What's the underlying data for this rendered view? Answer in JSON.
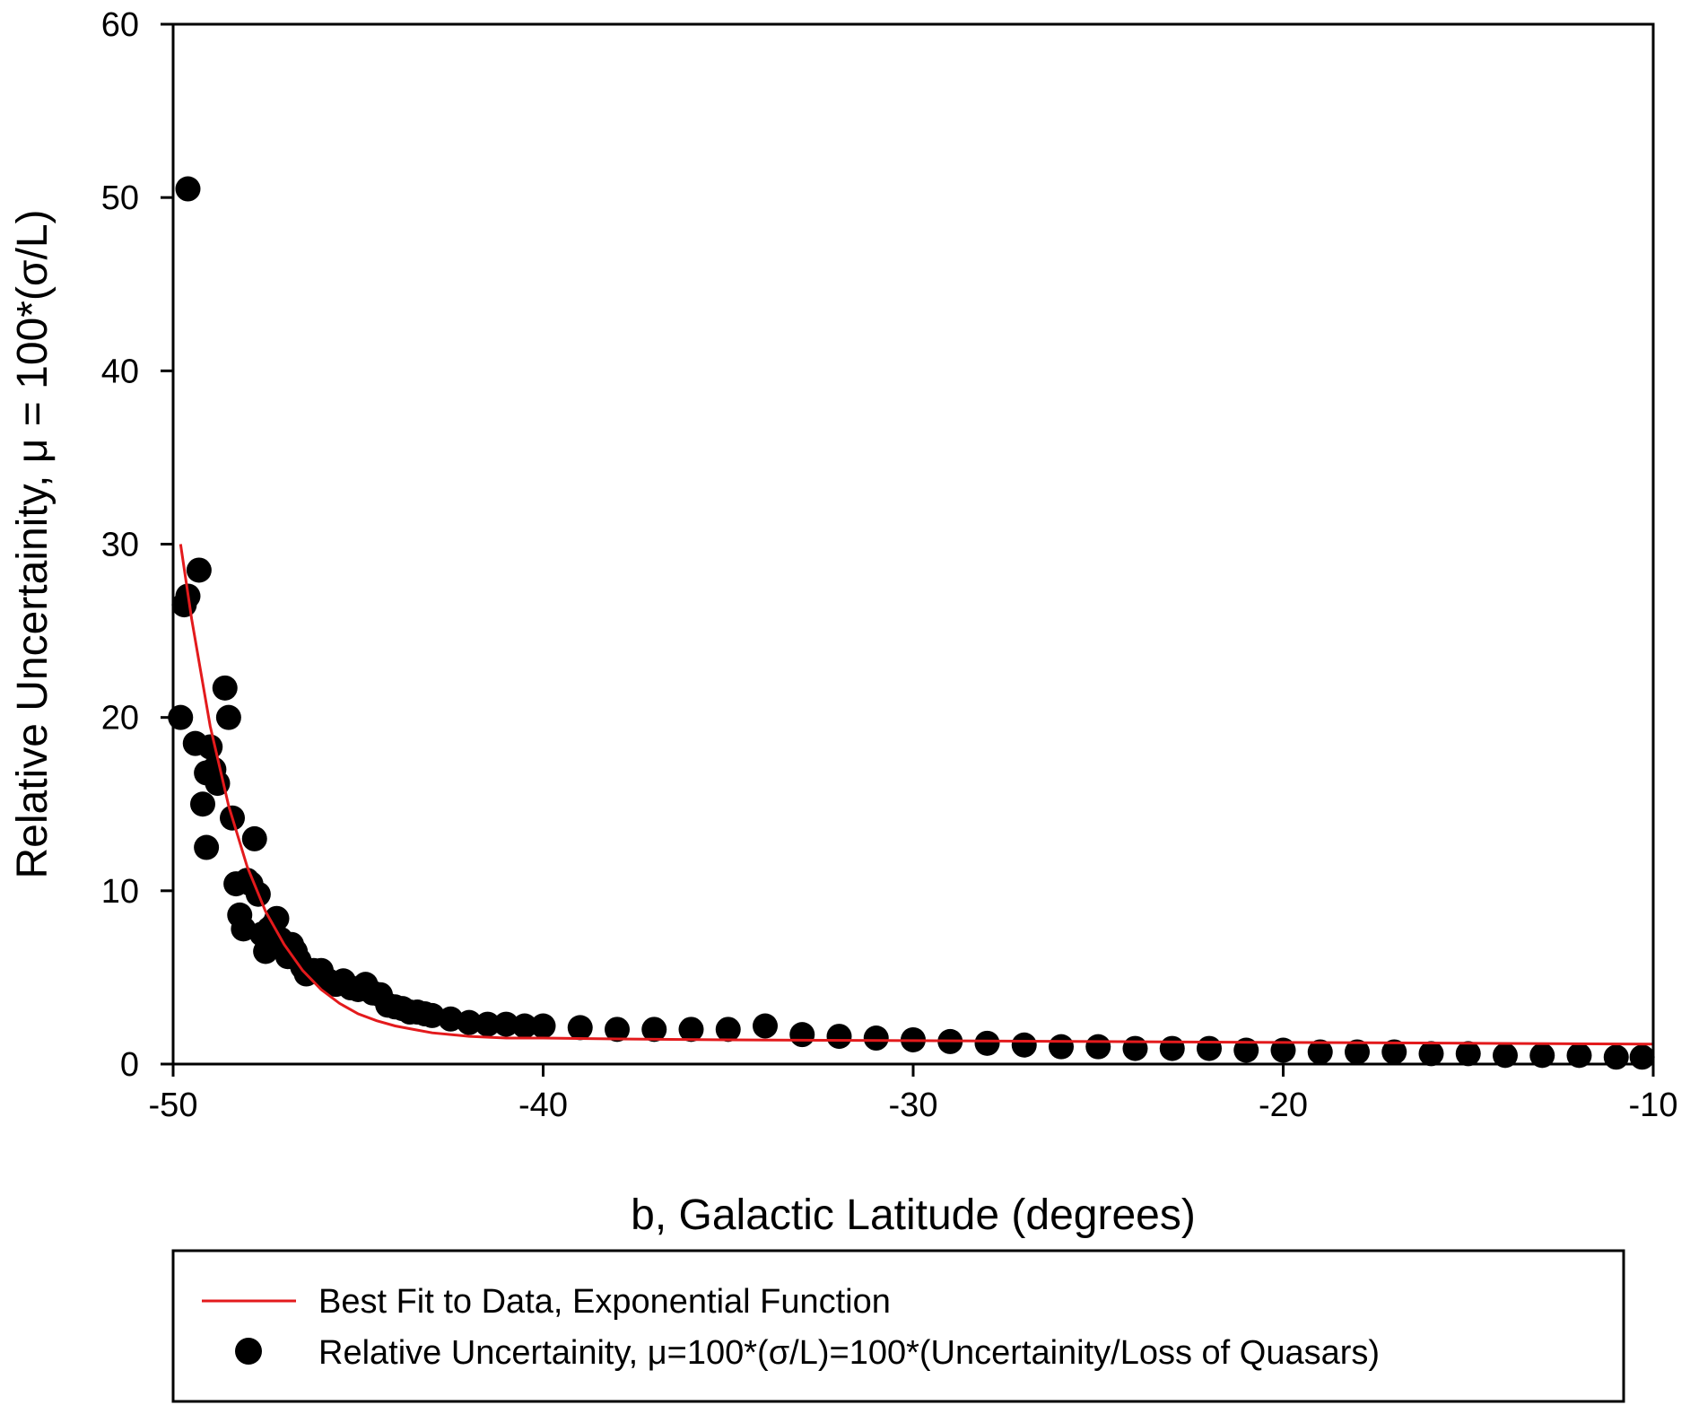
{
  "chart_data": {
    "type": "scatter",
    "title": "",
    "xlabel": "b, Galactic Latitude (degrees)",
    "ylabel": "Relative Uncertainity, μ = 100*(σ/L)",
    "xlim": [
      -50,
      -10
    ],
    "ylim": [
      0,
      60
    ],
    "x_ticks": [
      -50,
      -40,
      -30,
      -20,
      -10
    ],
    "y_ticks": [
      0,
      10,
      20,
      30,
      40,
      50,
      60
    ],
    "x_tick_labels": [
      "-50",
      "-40",
      "-30",
      "-20",
      "-10"
    ],
    "y_tick_labels": [
      "0",
      "10",
      "20",
      "30",
      "40",
      "50",
      "60"
    ],
    "grid": false,
    "legend_position": "bottom",
    "legend": [
      {
        "label": "Best Fit to Data, Exponential Function",
        "marker": "line",
        "color": "#e31a1c"
      },
      {
        "label": "Relative Uncertainity, μ=100*(σ/L)=100*(Uncertainity/Loss of Quasars)",
        "marker": "circle",
        "color": "#000000"
      }
    ],
    "series": [
      {
        "name": "Relative Uncertainity, μ=100*(σ/L)=100*(Uncertainity/Loss of Quasars)",
        "type": "scatter",
        "color": "#000000",
        "x": [
          -49.6,
          -49.7,
          -49.6,
          -49.3,
          -49.8,
          -49.4,
          -49.2,
          -49.0,
          -49.1,
          -48.9,
          -48.8,
          -49.1,
          -48.6,
          -48.5,
          -48.4,
          -48.3,
          -48.2,
          -48.1,
          -48.0,
          -47.9,
          -47.8,
          -47.7,
          -47.6,
          -47.5,
          -47.4,
          -47.3,
          -47.2,
          -47.1,
          -47.0,
          -46.9,
          -46.8,
          -46.7,
          -46.6,
          -46.5,
          -46.4,
          -46.2,
          -46.0,
          -45.8,
          -45.6,
          -45.4,
          -45.2,
          -45.0,
          -44.8,
          -44.6,
          -44.4,
          -44.2,
          -44.0,
          -43.8,
          -43.6,
          -43.4,
          -43.2,
          -43.0,
          -42.5,
          -42.0,
          -41.5,
          -41.0,
          -40.5,
          -40.0,
          -39.0,
          -38.0,
          -37.0,
          -36.0,
          -35.0,
          -34.0,
          -33.0,
          -32.0,
          -31.0,
          -30.0,
          -29.0,
          -28.0,
          -27.0,
          -26.0,
          -25.0,
          -24.0,
          -23.0,
          -22.0,
          -21.0,
          -20.0,
          -19.0,
          -18.0,
          -17.0,
          -16.0,
          -15.0,
          -14.0,
          -13.0,
          -12.0,
          -11.0,
          -10.3
        ],
        "y": [
          50.5,
          26.5,
          27.0,
          28.5,
          20.0,
          18.5,
          15.0,
          18.3,
          12.5,
          17.0,
          16.2,
          16.8,
          21.7,
          20.0,
          14.2,
          10.4,
          8.6,
          7.8,
          10.6,
          10.4,
          13.0,
          9.8,
          7.5,
          6.5,
          7.8,
          8.0,
          8.4,
          7.2,
          6.8,
          6.2,
          6.9,
          6.5,
          6.0,
          5.6,
          5.2,
          5.4,
          5.4,
          4.8,
          4.6,
          4.8,
          4.4,
          4.3,
          4.6,
          4.1,
          4.0,
          3.4,
          3.3,
          3.2,
          3.0,
          3.0,
          2.9,
          2.8,
          2.6,
          2.4,
          2.3,
          2.3,
          2.2,
          2.2,
          2.1,
          2.0,
          2.0,
          2.0,
          2.0,
          2.2,
          1.7,
          1.6,
          1.5,
          1.4,
          1.3,
          1.2,
          1.1,
          1.0,
          1.0,
          0.9,
          0.9,
          0.9,
          0.8,
          0.8,
          0.7,
          0.7,
          0.7,
          0.6,
          0.6,
          0.5,
          0.5,
          0.5,
          0.4,
          0.4
        ]
      },
      {
        "name": "Best Fit to Data, Exponential Function",
        "type": "line",
        "color": "#e31a1c",
        "x": [
          -49.8,
          -49.5,
          -49.0,
          -48.5,
          -48.0,
          -47.5,
          -47.0,
          -46.5,
          -46.0,
          -45.5,
          -45.0,
          -44.5,
          -44.0,
          -43.5,
          -43.0,
          -42.0,
          -41.0,
          -40.0,
          -38.0,
          -35.0,
          -30.0,
          -25.0,
          -20.0,
          -15.0,
          -10.0
        ],
        "y": [
          30.0,
          25.7,
          19.5,
          14.9,
          11.4,
          8.8,
          6.9,
          5.4,
          4.3,
          3.5,
          2.9,
          2.5,
          2.2,
          2.0,
          1.8,
          1.6,
          1.5,
          1.5,
          1.45,
          1.4,
          1.35,
          1.3,
          1.25,
          1.2,
          1.15
        ]
      }
    ]
  }
}
